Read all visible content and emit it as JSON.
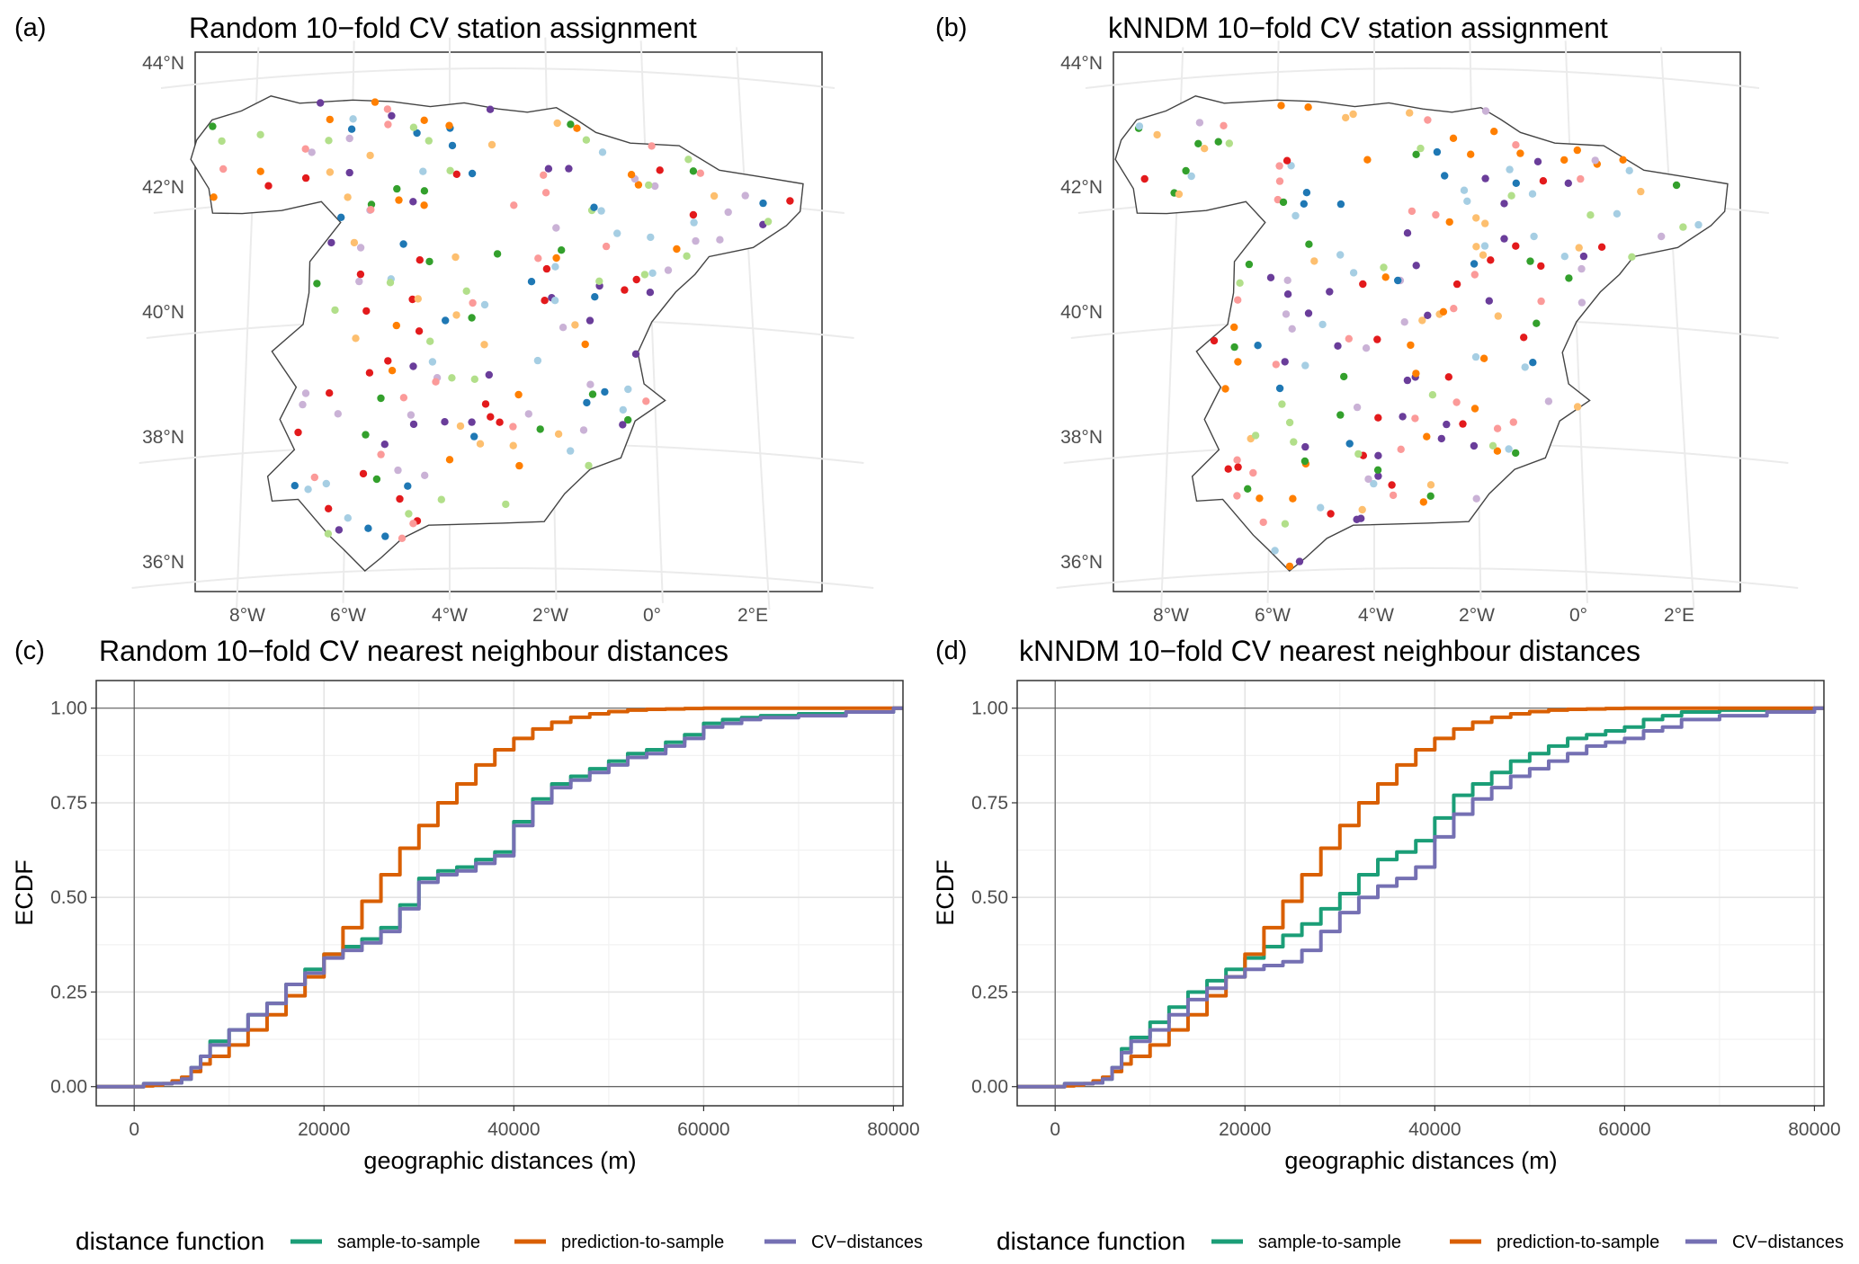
{
  "colors": {
    "fold_palette": [
      "#a6cee3",
      "#1f78b4",
      "#b2df8a",
      "#33a02c",
      "#fb9a99",
      "#e31a1c",
      "#fdbf6f",
      "#ff7f00",
      "#cab2d6",
      "#6a3d9a"
    ],
    "sample_to_sample": "#1b9e77",
    "prediction_to_sample": "#d95f02",
    "cv_distances": "#7570b3"
  },
  "panels": {
    "a": {
      "label": "(a)",
      "title": "Random 10−fold CV station assignment"
    },
    "b": {
      "label": "(b)",
      "title": "kNNDM 10−fold CV station assignment"
    },
    "c": {
      "label": "(c)",
      "title": "Random 10−fold CV nearest neighbour distances"
    },
    "d": {
      "label": "(d)",
      "title": "kNNDM 10−fold CV nearest neighbour distances"
    }
  },
  "map_axes": {
    "lat_labels": [
      "44°N",
      "42°N",
      "40°N",
      "38°N",
      "36°N"
    ],
    "lon_labels": [
      "8°W",
      "6°W",
      "4°W",
      "2°W",
      "0°",
      "2°E"
    ]
  },
  "chart_data": [
    {
      "type": "line",
      "panel": "c",
      "title": "Random 10−fold CV nearest neighbour distances",
      "xlabel": "geographic distances (m)",
      "ylabel": "ECDF",
      "xlim": [
        -4000,
        81000
      ],
      "ylim": [
        0,
        1
      ],
      "xticks": [
        0,
        20000,
        40000,
        60000,
        80000
      ],
      "yticks": [
        0.0,
        0.25,
        0.5,
        0.75,
        1.0
      ],
      "xtick_labels": [
        "0",
        "20000",
        "40000",
        "60000",
        "80000"
      ],
      "ytick_labels": [
        "0.00",
        "0.25",
        "0.50",
        "0.75",
        "1.00"
      ],
      "series": [
        {
          "name": "sample-to-sample",
          "color": "#1b9e77",
          "x": [
            0,
            1000,
            4000,
            5000,
            6000,
            7000,
            8000,
            10000,
            12000,
            14000,
            16000,
            18000,
            20000,
            22000,
            24000,
            26000,
            28000,
            30000,
            32000,
            34000,
            36000,
            38000,
            40000,
            42000,
            44000,
            46000,
            48000,
            50000,
            52000,
            54000,
            56000,
            58000,
            60000,
            62000,
            64000,
            66000,
            70000,
            75000,
            80000
          ],
          "y": [
            0,
            0.008,
            0.01,
            0.02,
            0.05,
            0.08,
            0.12,
            0.15,
            0.19,
            0.22,
            0.27,
            0.31,
            0.35,
            0.37,
            0.39,
            0.42,
            0.48,
            0.55,
            0.57,
            0.58,
            0.6,
            0.62,
            0.7,
            0.76,
            0.8,
            0.82,
            0.84,
            0.86,
            0.88,
            0.89,
            0.91,
            0.93,
            0.96,
            0.97,
            0.975,
            0.98,
            0.985,
            0.99,
            1.0
          ]
        },
        {
          "name": "prediction-to-sample",
          "color": "#d95f02",
          "x": [
            0,
            1000,
            2000,
            3000,
            4000,
            5000,
            6000,
            7000,
            8000,
            10000,
            12000,
            14000,
            16000,
            18000,
            20000,
            22000,
            24000,
            26000,
            28000,
            30000,
            32000,
            34000,
            36000,
            38000,
            40000,
            42000,
            44000,
            46000,
            48000,
            50000,
            52000,
            54000,
            56000,
            58000,
            60000,
            65000,
            70000,
            80000
          ],
          "y": [
            0,
            0.002,
            0.004,
            0.008,
            0.015,
            0.025,
            0.04,
            0.06,
            0.08,
            0.11,
            0.15,
            0.19,
            0.24,
            0.29,
            0.35,
            0.42,
            0.49,
            0.56,
            0.63,
            0.69,
            0.75,
            0.8,
            0.85,
            0.89,
            0.92,
            0.945,
            0.963,
            0.976,
            0.985,
            0.991,
            0.995,
            0.997,
            0.998,
            0.999,
            1.0,
            1.0,
            1.0,
            1.0
          ]
        },
        {
          "name": "CV-distances",
          "color": "#7570b3",
          "x": [
            0,
            1000,
            4000,
            5000,
            6000,
            7000,
            8000,
            10000,
            12000,
            14000,
            16000,
            18000,
            20000,
            22000,
            24000,
            26000,
            28000,
            30000,
            32000,
            34000,
            36000,
            38000,
            40000,
            42000,
            44000,
            46000,
            48000,
            50000,
            52000,
            54000,
            56000,
            58000,
            60000,
            62000,
            64000,
            66000,
            70000,
            75000,
            80000
          ],
          "y": [
            0,
            0.008,
            0.01,
            0.02,
            0.05,
            0.08,
            0.11,
            0.15,
            0.19,
            0.22,
            0.27,
            0.3,
            0.34,
            0.36,
            0.38,
            0.41,
            0.47,
            0.54,
            0.56,
            0.57,
            0.59,
            0.61,
            0.69,
            0.75,
            0.79,
            0.81,
            0.83,
            0.85,
            0.87,
            0.88,
            0.9,
            0.92,
            0.95,
            0.96,
            0.97,
            0.975,
            0.98,
            0.99,
            1.0
          ]
        }
      ]
    },
    {
      "type": "line",
      "panel": "d",
      "title": "kNNDM 10−fold CV nearest neighbour distances",
      "xlabel": "geographic distances (m)",
      "ylabel": "ECDF",
      "xlim": [
        -4000,
        81000
      ],
      "ylim": [
        0,
        1
      ],
      "xticks": [
        0,
        20000,
        40000,
        60000,
        80000
      ],
      "yticks": [
        0.0,
        0.25,
        0.5,
        0.75,
        1.0
      ],
      "xtick_labels": [
        "0",
        "20000",
        "40000",
        "60000",
        "80000"
      ],
      "ytick_labels": [
        "0.00",
        "0.25",
        "0.50",
        "0.75",
        "1.00"
      ],
      "series": [
        {
          "name": "sample-to-sample",
          "color": "#1b9e77",
          "x": [
            0,
            1000,
            4000,
            5000,
            6000,
            7000,
            8000,
            10000,
            12000,
            14000,
            16000,
            18000,
            20000,
            22000,
            24000,
            26000,
            28000,
            30000,
            32000,
            34000,
            36000,
            38000,
            40000,
            42000,
            44000,
            46000,
            48000,
            50000,
            52000,
            54000,
            56000,
            58000,
            60000,
            62000,
            64000,
            66000,
            70000,
            75000,
            80000
          ],
          "y": [
            0,
            0.008,
            0.01,
            0.02,
            0.05,
            0.1,
            0.13,
            0.17,
            0.21,
            0.25,
            0.28,
            0.31,
            0.34,
            0.37,
            0.4,
            0.43,
            0.47,
            0.51,
            0.56,
            0.6,
            0.62,
            0.65,
            0.71,
            0.77,
            0.8,
            0.83,
            0.86,
            0.88,
            0.9,
            0.92,
            0.93,
            0.94,
            0.95,
            0.97,
            0.98,
            0.99,
            0.995,
            0.998,
            1.0
          ]
        },
        {
          "name": "prediction-to-sample",
          "color": "#d95f02",
          "x": [
            0,
            1000,
            2000,
            3000,
            4000,
            5000,
            6000,
            7000,
            8000,
            10000,
            12000,
            14000,
            16000,
            18000,
            20000,
            22000,
            24000,
            26000,
            28000,
            30000,
            32000,
            34000,
            36000,
            38000,
            40000,
            42000,
            44000,
            46000,
            48000,
            50000,
            52000,
            54000,
            56000,
            58000,
            60000,
            65000,
            70000,
            80000
          ],
          "y": [
            0,
            0.002,
            0.004,
            0.008,
            0.015,
            0.025,
            0.04,
            0.06,
            0.08,
            0.11,
            0.15,
            0.19,
            0.24,
            0.29,
            0.35,
            0.42,
            0.49,
            0.56,
            0.63,
            0.69,
            0.75,
            0.8,
            0.85,
            0.89,
            0.92,
            0.945,
            0.963,
            0.976,
            0.985,
            0.991,
            0.995,
            0.997,
            0.998,
            0.999,
            1.0,
            1.0,
            1.0,
            1.0
          ]
        },
        {
          "name": "CV-distances",
          "color": "#7570b3",
          "x": [
            0,
            1000,
            4000,
            5000,
            6000,
            7000,
            8000,
            10000,
            12000,
            14000,
            16000,
            18000,
            20000,
            22000,
            24000,
            26000,
            28000,
            30000,
            32000,
            34000,
            36000,
            38000,
            40000,
            42000,
            44000,
            46000,
            48000,
            50000,
            52000,
            54000,
            56000,
            58000,
            60000,
            62000,
            64000,
            66000,
            70000,
            75000,
            80000
          ],
          "y": [
            0,
            0.008,
            0.01,
            0.02,
            0.05,
            0.09,
            0.12,
            0.15,
            0.19,
            0.23,
            0.26,
            0.29,
            0.31,
            0.32,
            0.33,
            0.36,
            0.41,
            0.46,
            0.5,
            0.53,
            0.55,
            0.58,
            0.66,
            0.72,
            0.76,
            0.79,
            0.82,
            0.84,
            0.86,
            0.88,
            0.9,
            0.91,
            0.92,
            0.94,
            0.95,
            0.97,
            0.98,
            0.99,
            1.0
          ]
        }
      ]
    }
  ],
  "legends": {
    "c": {
      "title": "distance function",
      "items": [
        "sample-to-sample",
        "prediction-to-sample",
        "CV−distances"
      ]
    },
    "d": {
      "title": "distance function",
      "items": [
        "sample-to-sample",
        "prediction-to-sample",
        "CV−distances"
      ]
    }
  }
}
